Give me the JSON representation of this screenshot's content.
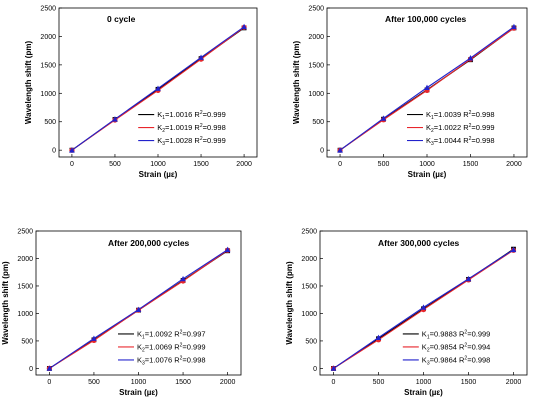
{
  "chart_data": [
    {
      "type": "line",
      "title": "0 cycle",
      "xlabel": "Strain (µε)",
      "ylabel": "Wavelength shift (pm)",
      "x": [
        0,
        500,
        1000,
        1500,
        2000
      ],
      "xlim": [
        -150,
        2150
      ],
      "ylim": [
        -120,
        2500
      ],
      "xticks": [
        "0",
        "500",
        "1000",
        "1500",
        "2000"
      ],
      "yticks": [
        "0",
        "500",
        "1000",
        "1500",
        "2000",
        "2500"
      ],
      "legend_position": "lower-right",
      "series": [
        {
          "name": "K1=1.0016 R2=0.999",
          "K_value": "1.0016",
          "R2_value": "0.999",
          "values": [
            0,
            540,
            1070,
            1610,
            2150
          ],
          "color": "#000000",
          "marker": "square"
        },
        {
          "name": "K2=1.0019 R2=0.998",
          "K_value": "1.0019",
          "R2_value": "0.998",
          "values": [
            0,
            530,
            1050,
            1600,
            2160
          ],
          "color": "#e8262c",
          "marker": "circle"
        },
        {
          "name": "K3=1.0028 R2=0.999",
          "K_value": "1.0028",
          "R2_value": "0.999",
          "values": [
            0,
            545,
            1085,
            1630,
            2170
          ],
          "color": "#2222cc",
          "marker": "triangle"
        }
      ]
    },
    {
      "type": "line",
      "title": "After 100,000 cycles",
      "xlabel": "Strain (µε)",
      "ylabel": "Wavelength shift (pm)",
      "x": [
        0,
        500,
        1000,
        1500,
        2000
      ],
      "xlim": [
        -150,
        2150
      ],
      "ylim": [
        -120,
        2500
      ],
      "xticks": [
        "0",
        "500",
        "1000",
        "1500",
        "2000"
      ],
      "yticks": [
        "0",
        "500",
        "1000",
        "1500",
        "2000",
        "2500"
      ],
      "legend_position": "lower-right",
      "series": [
        {
          "name": "K1=1.0039 R2=0.998",
          "K_value": "1.0039",
          "R2_value": "0.998",
          "values": [
            0,
            545,
            1060,
            1590,
            2150
          ],
          "color": "#000000",
          "marker": "square"
        },
        {
          "name": "K2=1.0022 R2=0.999",
          "K_value": "1.0022",
          "R2_value": "0.999",
          "values": [
            0,
            535,
            1050,
            1600,
            2145
          ],
          "color": "#e8262c",
          "marker": "circle"
        },
        {
          "name": "K3=1.0044 R2=0.998",
          "K_value": "1.0044",
          "R2_value": "0.998",
          "values": [
            0,
            560,
            1100,
            1620,
            2170
          ],
          "color": "#2222cc",
          "marker": "triangle"
        }
      ]
    },
    {
      "type": "line",
      "title": "After 200,000 cycles",
      "xlabel": "Strain (µε)",
      "ylabel": "Wavelength shift (pm)",
      "x": [
        0,
        500,
        1000,
        1500,
        2000
      ],
      "xlim": [
        -150,
        2150
      ],
      "ylim": [
        -120,
        2500
      ],
      "xticks": [
        "0",
        "500",
        "1000",
        "1500",
        "2000"
      ],
      "yticks": [
        "0",
        "500",
        "1000",
        "1500",
        "2000",
        "2500"
      ],
      "legend_position": "lower-right",
      "series": [
        {
          "name": "K1=1.0092 R2=0.997",
          "K_value": "1.0092",
          "R2_value": "0.997",
          "values": [
            0,
            520,
            1060,
            1600,
            2140
          ],
          "color": "#000000",
          "marker": "square"
        },
        {
          "name": "K2=1.0069 R2=0.999",
          "K_value": "1.0069",
          "R2_value": "0.999",
          "values": [
            0,
            510,
            1060,
            1590,
            2150
          ],
          "color": "#e8262c",
          "marker": "circle"
        },
        {
          "name": "K3=1.0076 R2=0.998",
          "K_value": "1.0076",
          "R2_value": "0.998",
          "values": [
            0,
            545,
            1070,
            1630,
            2160
          ],
          "color": "#2222cc",
          "marker": "triangle"
        }
      ]
    },
    {
      "type": "line",
      "title": "After 300,000 cycles",
      "xlabel": "Strain (µε)",
      "ylabel": "Wavelength shift (pm)",
      "x": [
        0,
        500,
        1000,
        1500,
        2000
      ],
      "xlim": [
        -150,
        2150
      ],
      "ylim": [
        -120,
        2500
      ],
      "xticks": [
        "0",
        "500",
        "1000",
        "1500",
        "2000"
      ],
      "yticks": [
        "0",
        "500",
        "1000",
        "1500",
        "2000",
        "2500"
      ],
      "legend_position": "lower-right",
      "series": [
        {
          "name": "K1=0.9883 R2=0.999",
          "K_value": "0.9883",
          "R2_value": "0.999",
          "values": [
            0,
            540,
            1085,
            1620,
            2170
          ],
          "color": "#000000",
          "marker": "square"
        },
        {
          "name": "K2=0.9854 R2=0.994",
          "K_value": "0.9854",
          "R2_value": "0.994",
          "values": [
            0,
            520,
            1070,
            1610,
            2150
          ],
          "color": "#e8262c",
          "marker": "circle"
        },
        {
          "name": "K3=0.9864 R2=0.998",
          "K_value": "0.9864",
          "R2_value": "0.998",
          "values": [
            0,
            560,
            1110,
            1630,
            2160
          ],
          "color": "#2222cc",
          "marker": "triangle"
        }
      ]
    }
  ]
}
